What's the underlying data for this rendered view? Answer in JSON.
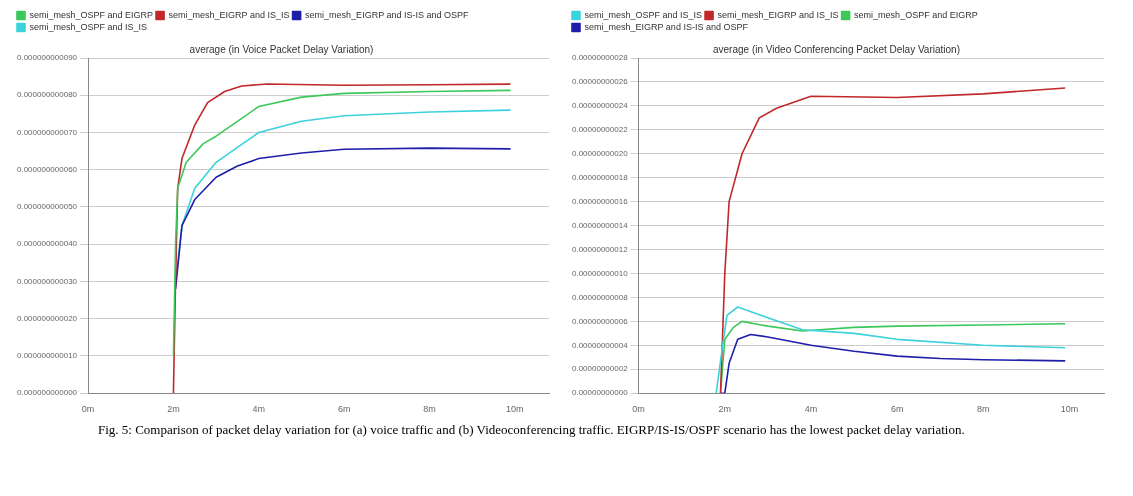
{
  "chart_data": [
    {
      "type": "line",
      "title": "average (in Voice Packet Delay Variation)",
      "legend": "top left",
      "grid": "y",
      "xlim": [
        0,
        10.8
      ],
      "xticks": [
        {
          "value": 0,
          "label": "0m"
        },
        {
          "value": 2,
          "label": "2m"
        },
        {
          "value": 4,
          "label": "4m"
        },
        {
          "value": 6,
          "label": "6m"
        },
        {
          "value": 8,
          "label": "8m"
        },
        {
          "value": 10,
          "label": "10m"
        }
      ],
      "ylim": [
        0,
        9e-11
      ],
      "yticks": [
        {
          "value": 0,
          "label": "0.000000000000"
        },
        {
          "value": 1e-11,
          "label": "0.000000000010"
        },
        {
          "value": 2e-11,
          "label": "0.000000000020"
        },
        {
          "value": 3e-11,
          "label": "0.000000000030"
        },
        {
          "value": 4e-11,
          "label": "0.000000000040"
        },
        {
          "value": 5e-11,
          "label": "0.000000000050"
        },
        {
          "value": 6e-11,
          "label": "0.000000000060"
        },
        {
          "value": 7e-11,
          "label": "0.000000000070"
        },
        {
          "value": 8e-11,
          "label": "0.000000000080"
        },
        {
          "value": 9e-11,
          "label": "0.000000000090"
        }
      ],
      "annotations": [
        "Fig. 5: Comparison of packet delay variation for (a) voice traffic and (b) Videoconferencing traffic. EIGRP/IS-IS/OSPF scenario has the lowest packet delay variation."
      ],
      "series": [
        {
          "name": "semi_mesh_OSPF and EIGRP",
          "color": "#3cc85a",
          "x": [
            2.0,
            2.05,
            2.1,
            2.3,
            2.7,
            3.0,
            3.5,
            4.0,
            5,
            6,
            8,
            9.9
          ],
          "values": [
            1e-11,
            4e-11,
            5.5e-11,
            6.2e-11,
            6.7e-11,
            6.9e-11,
            7.3e-11,
            7.7e-11,
            7.95e-11,
            8.05e-11,
            8.1e-11,
            8.13e-11
          ]
        },
        {
          "name": "semi_mesh_EIGRP and IS_IS",
          "color": "#c0282a",
          "x": [
            2.0,
            2.05,
            2.1,
            2.2,
            2.5,
            2.8,
            3.2,
            3.6,
            4.2,
            6,
            8,
            9.9
          ],
          "values": [
            0,
            3e-11,
            5.5e-11,
            6.3e-11,
            7.2e-11,
            7.8e-11,
            8.1e-11,
            8.25e-11,
            8.3e-11,
            8.27e-11,
            8.28e-11,
            8.3e-11
          ]
        },
        {
          "name": "semi_mesh_EIGRP and IS-IS and OSPF",
          "color": "#1e1eaa",
          "x": [
            2.05,
            2.2,
            2.5,
            3,
            3.5,
            4,
            5,
            6,
            8,
            9.9
          ],
          "values": [
            2.8e-11,
            4.5e-11,
            5.2e-11,
            5.8e-11,
            6.1e-11,
            6.3e-11,
            6.45e-11,
            6.55e-11,
            6.58e-11,
            6.56e-11
          ]
        },
        {
          "name": "semi_mesh_OSPF and IS_IS",
          "color": "#3cd2dc",
          "x": [
            2.05,
            2.2,
            2.5,
            3,
            3.5,
            4,
            5,
            6,
            8,
            9.9
          ],
          "values": [
            3e-11,
            4.5e-11,
            5.5e-11,
            6.2e-11,
            6.6e-11,
            7e-11,
            7.3e-11,
            7.45e-11,
            7.55e-11,
            7.6e-11
          ]
        }
      ]
    },
    {
      "type": "line",
      "title": "average (in Video Conferencing Packet Delay Variation)",
      "legend": "top left",
      "grid": "y",
      "xlim": [
        0,
        10.8
      ],
      "xticks": [
        {
          "value": 0,
          "label": "0m"
        },
        {
          "value": 2,
          "label": "2m"
        },
        {
          "value": 4,
          "label": "4m"
        },
        {
          "value": 6,
          "label": "6m"
        },
        {
          "value": 8,
          "label": "8m"
        },
        {
          "value": 10,
          "label": "10m"
        }
      ],
      "ylim": [
        0,
        2.8e-10
      ],
      "yticks": [
        {
          "value": 0,
          "label": "0.00000000000"
        },
        {
          "value": 2e-11,
          "label": "0.00000000002"
        },
        {
          "value": 4e-11,
          "label": "0.00000000004"
        },
        {
          "value": 6e-11,
          "label": "0.00000000006"
        },
        {
          "value": 8e-11,
          "label": "0.00000000008"
        },
        {
          "value": 1e-10,
          "label": "0.00000000010"
        },
        {
          "value": 1.2e-10,
          "label": "0.00000000012"
        },
        {
          "value": 1.4e-10,
          "label": "0.00000000014"
        },
        {
          "value": 1.6e-10,
          "label": "0.00000000016"
        },
        {
          "value": 1.8e-10,
          "label": "0.00000000018"
        },
        {
          "value": 2e-10,
          "label": "0.00000000020"
        },
        {
          "value": 2.2e-10,
          "label": "0.00000000022"
        },
        {
          "value": 2.4e-10,
          "label": "0.00000000024"
        },
        {
          "value": 2.6e-10,
          "label": "0.00000000026"
        },
        {
          "value": 2.8e-10,
          "label": "0.00000000028"
        }
      ],
      "series": [
        {
          "name": "semi_mesh_OSPF and IS_IS",
          "color": "#3cd2dc",
          "x": [
            1.8,
            1.95,
            2.05,
            2.3,
            3,
            3.8,
            5,
            6,
            8,
            9.9
          ],
          "values": [
            0,
            4e-11,
            6.5e-11,
            7.2e-11,
            6.3e-11,
            5.3e-11,
            5e-11,
            4.5e-11,
            4e-11,
            3.8e-11
          ]
        },
        {
          "name": "semi_mesh_EIGRP and IS_IS",
          "color": "#c0282a",
          "x": [
            1.9,
            2.0,
            2.1,
            2.4,
            2.8,
            3.2,
            4,
            6,
            8,
            9.9
          ],
          "values": [
            0,
            1e-10,
            1.6e-10,
            2e-10,
            2.3e-10,
            2.38e-10,
            2.48e-10,
            2.47e-10,
            2.5e-10,
            2.55e-10
          ]
        },
        {
          "name": "semi_mesh_OSPF and EIGRP",
          "color": "#3cc85a",
          "x": [
            1.9,
            2.0,
            2.2,
            2.4,
            3,
            3.8,
            5,
            6,
            8,
            9.9
          ],
          "values": [
            0,
            4.5e-11,
            5.5e-11,
            6e-11,
            5.6e-11,
            5.2e-11,
            5.5e-11,
            5.6e-11,
            5.7e-11,
            5.8e-11
          ]
        },
        {
          "name": "semi_mesh_EIGRP and IS-IS and OSPF",
          "color": "#1e1eaa",
          "x": [
            1.9,
            2.0,
            2.1,
            2.3,
            2.6,
            3,
            4,
            5,
            6,
            7,
            8,
            9.9
          ],
          "values": [
            0,
            0,
            2.5e-11,
            4.5e-11,
            4.9e-11,
            4.7e-11,
            4e-11,
            3.5e-11,
            3.1e-11,
            2.9e-11,
            2.8e-11,
            2.7e-11
          ]
        }
      ]
    }
  ]
}
